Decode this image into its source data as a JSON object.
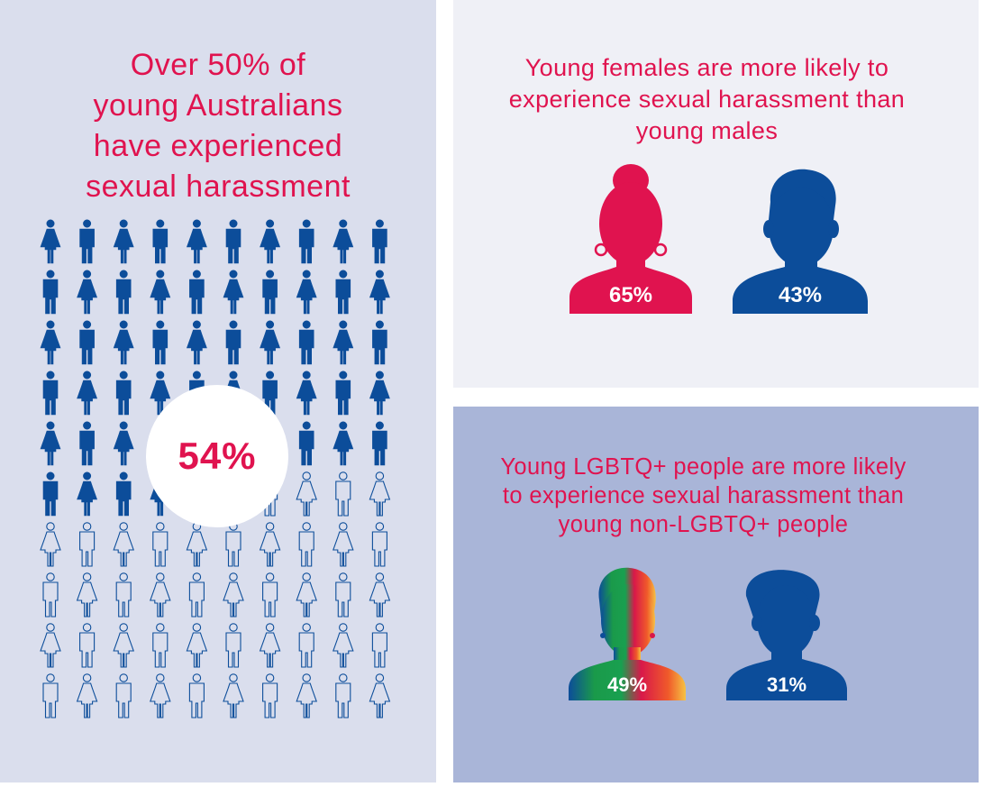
{
  "left": {
    "headline_lines": [
      "Over 50% of",
      "young Australians",
      "have experienced",
      "sexual harassment"
    ],
    "stat": "54%",
    "filled_count": 54,
    "total_count": 100,
    "colors": {
      "filled": "#0c4d9a",
      "outline": "#0c4d9a",
      "accent": "#e0134f"
    },
    "icons": [
      "female-person-icon",
      "male-person-icon"
    ]
  },
  "top_right": {
    "headline_lines": [
      "Young females are more likely to",
      "experience sexual harassment than",
      "young males"
    ],
    "female": {
      "value": "65%",
      "color": "#e0134f",
      "icon": "female-silhouette-icon"
    },
    "male": {
      "value": "43%",
      "color": "#0c4d9a",
      "icon": "male-silhouette-icon"
    }
  },
  "bottom_right": {
    "headline_lines": [
      "Young LGBTQ+ people are more likely",
      "to experience sexual harassment than",
      "young non-LGBTQ+ people"
    ],
    "lgbtq": {
      "value": "49%",
      "icon": "rainbow-silhouette-icon"
    },
    "non_lgbtq": {
      "value": "31%",
      "color": "#0c4d9a",
      "icon": "male-silhouette-icon"
    }
  }
}
